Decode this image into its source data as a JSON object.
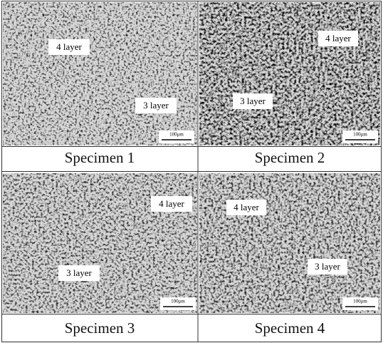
{
  "panels": [
    {
      "caption": "Specimen 1",
      "labels": [
        "4 layer",
        "3 layer"
      ],
      "scale_bar": "100μm"
    },
    {
      "caption": "Specimen 2",
      "labels": [
        "4 layer",
        "3 layer"
      ],
      "scale_bar": "100μm"
    },
    {
      "caption": "Specimen 3",
      "labels": [
        "4 layer",
        "3 layer"
      ],
      "scale_bar": "100μm"
    },
    {
      "caption": "Specimen 4",
      "labels": [
        "4 layer",
        "3 layer"
      ],
      "scale_bar": "100μm"
    }
  ]
}
